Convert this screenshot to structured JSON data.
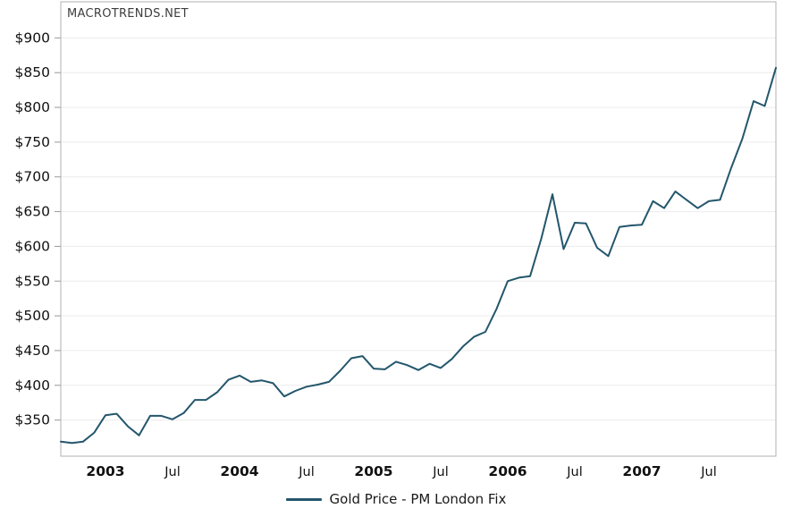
{
  "watermark": "MACROTRENDS.NET",
  "legend": {
    "label": "Gold Price - PM London Fix"
  },
  "colors": {
    "series": "#23566c",
    "grid": "#ececec",
    "frame": "#b0b0b0",
    "tick": "#999999",
    "axis_text": "#111111",
    "watermark_text": "#3d3d3d"
  },
  "chart_data": {
    "type": "line",
    "title": "",
    "series": [
      {
        "name": "Gold Price - PM London Fix",
        "x": [
          "2002-09",
          "2002-10",
          "2002-11",
          "2002-12",
          "2003-01",
          "2003-02",
          "2003-03",
          "2003-04",
          "2003-05",
          "2003-06",
          "2003-07",
          "2003-08",
          "2003-09",
          "2003-10",
          "2003-11",
          "2003-12",
          "2004-01",
          "2004-02",
          "2004-03",
          "2004-04",
          "2004-05",
          "2004-06",
          "2004-07",
          "2004-08",
          "2004-09",
          "2004-10",
          "2004-11",
          "2004-12",
          "2005-01",
          "2005-02",
          "2005-03",
          "2005-04",
          "2005-05",
          "2005-06",
          "2005-07",
          "2005-08",
          "2005-09",
          "2005-10",
          "2005-11",
          "2005-12",
          "2006-01",
          "2006-02",
          "2006-03",
          "2006-04",
          "2006-05",
          "2006-06",
          "2006-07",
          "2006-08",
          "2006-09",
          "2006-10",
          "2006-11",
          "2006-12",
          "2007-01",
          "2007-02",
          "2007-03",
          "2007-04",
          "2007-05",
          "2007-06",
          "2007-07",
          "2007-08",
          "2007-09",
          "2007-10",
          "2007-11",
          "2007-12",
          "2008-01"
        ],
        "values": [
          319,
          317,
          319,
          332,
          357,
          359,
          341,
          328,
          356,
          356,
          351,
          360,
          379,
          379,
          390,
          408,
          414,
          405,
          407,
          403,
          384,
          392,
          398,
          401,
          405,
          421,
          439,
          442,
          424,
          423,
          434,
          429,
          422,
          431,
          425,
          438,
          456,
          470,
          477,
          510,
          550,
          555,
          557,
          611,
          675,
          596,
          634,
          633,
          598,
          586,
          628,
          630,
          631,
          665,
          655,
          679,
          667,
          655,
          665,
          667,
          713,
          755,
          809,
          802,
          857
        ]
      }
    ],
    "ylabel": "",
    "xlabel": "",
    "ylim": [
      298,
      952
    ],
    "y_ticks": [
      350,
      400,
      450,
      500,
      550,
      600,
      650,
      700,
      750,
      800,
      850,
      900
    ],
    "y_tick_prefix": "$",
    "x_ticks": [
      {
        "label": "2003",
        "index": 4,
        "bold": true
      },
      {
        "label": "Jul",
        "index": 10,
        "bold": false
      },
      {
        "label": "2004",
        "index": 16,
        "bold": true
      },
      {
        "label": "Jul",
        "index": 22,
        "bold": false
      },
      {
        "label": "2005",
        "index": 28,
        "bold": true
      },
      {
        "label": "Jul",
        "index": 34,
        "bold": false
      },
      {
        "label": "2006",
        "index": 40,
        "bold": true
      },
      {
        "label": "Jul",
        "index": 46,
        "bold": false
      },
      {
        "label": "2007",
        "index": 52,
        "bold": true
      },
      {
        "label": "Jul",
        "index": 58,
        "bold": false
      }
    ],
    "grid": "horizontal-only",
    "legend_position": "bottom-center",
    "plot_frame": true
  }
}
